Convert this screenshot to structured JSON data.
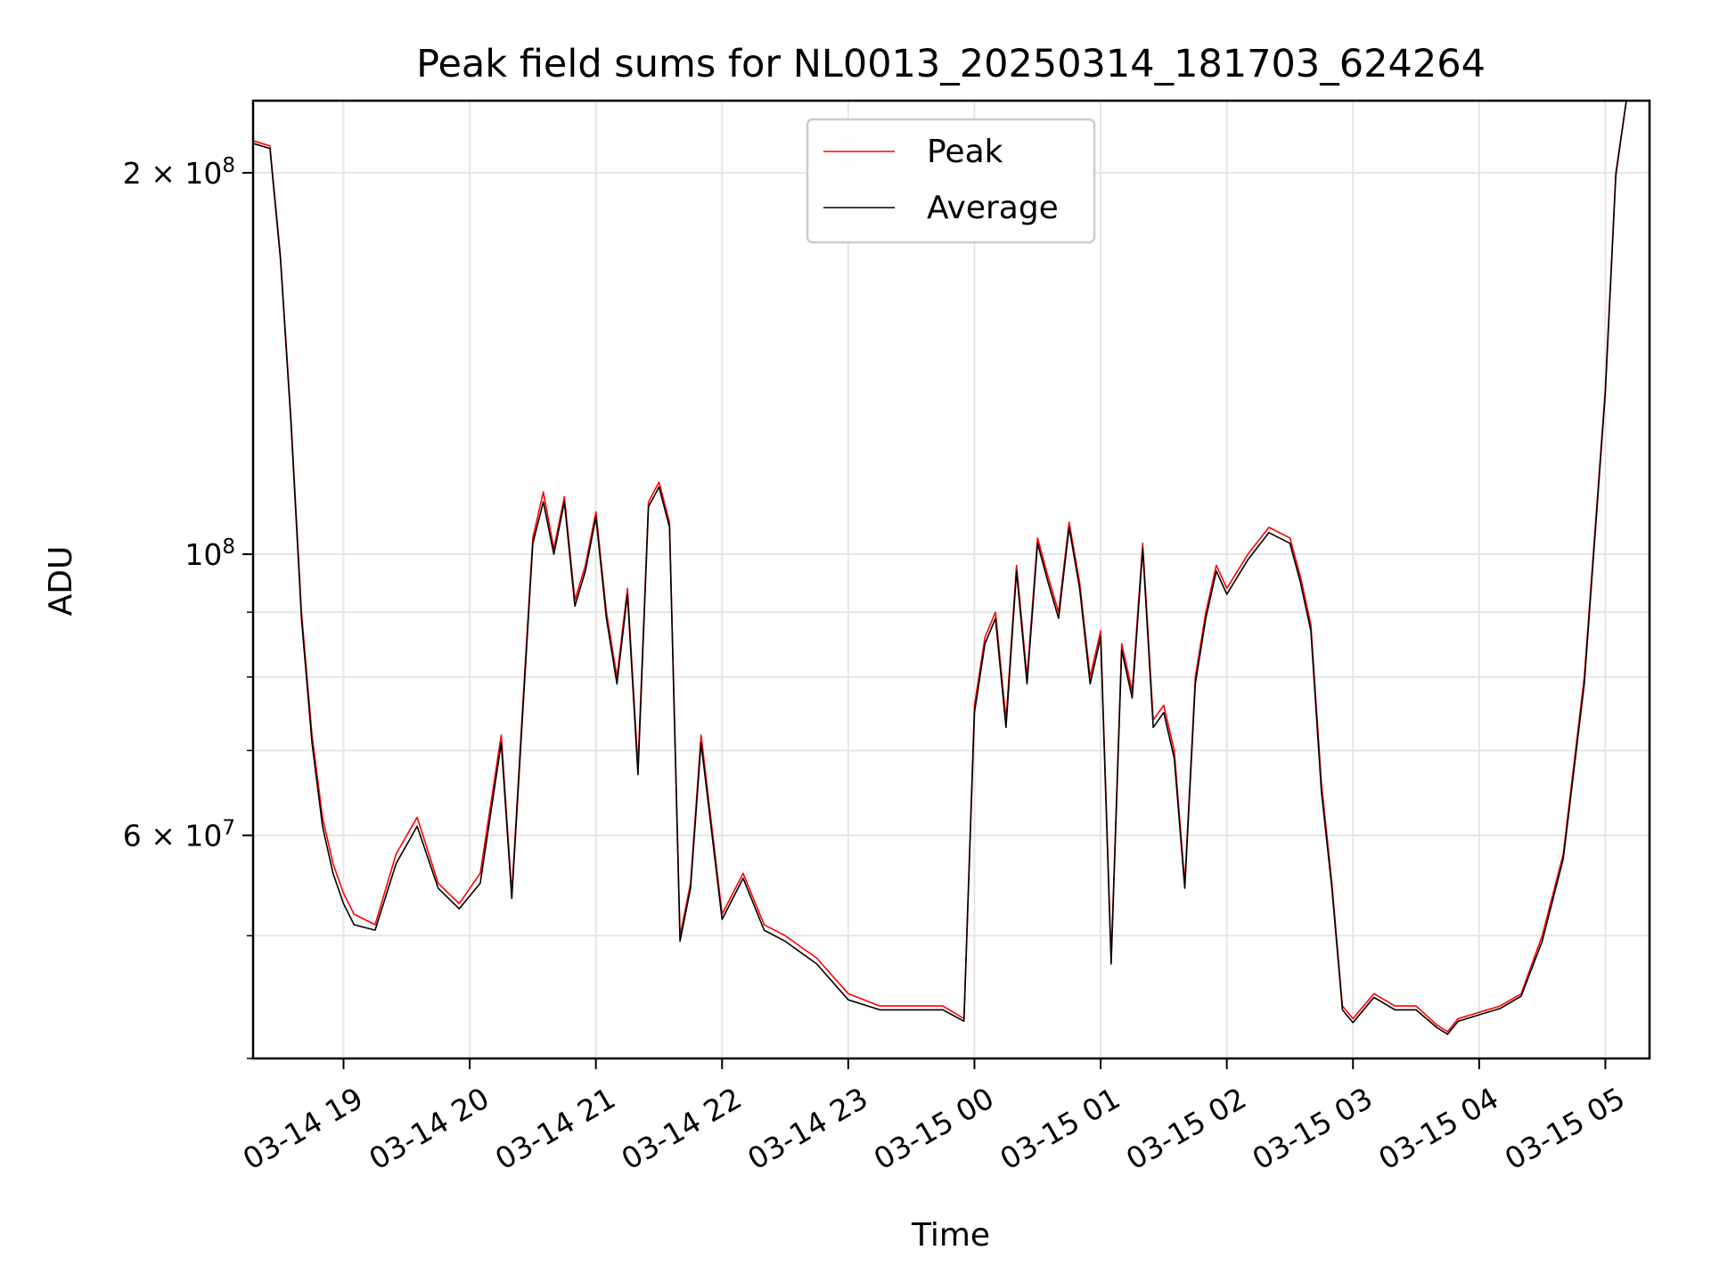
{
  "chart_data": {
    "type": "line",
    "title": "Peak field sums for NL0013_20250314_181703_624264",
    "xlabel": "Time",
    "ylabel": "ADU",
    "y_scale": "log",
    "ylim": [
      40000000,
      228000000
    ],
    "xlim": [
      "03-14 18:17",
      "03-15 05:21"
    ],
    "grid": true,
    "legend_position": "top-center",
    "x_ticks": [
      "03-14 19",
      "03-14 20",
      "03-14 21",
      "03-14 22",
      "03-14 23",
      "03-15 00",
      "03-15 01",
      "03-15 02",
      "03-15 03",
      "03-15 04",
      "03-15 05"
    ],
    "y_ticks": [
      {
        "value": 200000000,
        "label": "2 × 10^8"
      },
      {
        "value": 100000000,
        "label": "10^8"
      },
      {
        "value": 60000000,
        "label": "6 × 10^7"
      }
    ],
    "x": [
      "03-14 18:17",
      "03-14 18:25",
      "03-14 18:30",
      "03-14 18:35",
      "03-14 18:40",
      "03-14 18:45",
      "03-14 18:50",
      "03-14 18:55",
      "03-14 19:00",
      "03-14 19:05",
      "03-14 19:15",
      "03-14 19:25",
      "03-14 19:35",
      "03-14 19:45",
      "03-14 19:55",
      "03-14 20:05",
      "03-14 20:15",
      "03-14 20:20",
      "03-14 20:25",
      "03-14 20:30",
      "03-14 20:35",
      "03-14 20:40",
      "03-14 20:45",
      "03-14 20:50",
      "03-14 20:55",
      "03-14 21:00",
      "03-14 21:05",
      "03-14 21:10",
      "03-14 21:15",
      "03-14 21:20",
      "03-14 21:25",
      "03-14 21:30",
      "03-14 21:35",
      "03-14 21:40",
      "03-14 21:45",
      "03-14 21:50",
      "03-14 22:00",
      "03-14 22:10",
      "03-14 22:20",
      "03-14 22:30",
      "03-14 22:45",
      "03-14 23:00",
      "03-14 23:15",
      "03-14 23:30",
      "03-14 23:45",
      "03-14 23:55",
      "03-15 00:00",
      "03-15 00:05",
      "03-15 00:10",
      "03-15 00:15",
      "03-15 00:20",
      "03-15 00:25",
      "03-15 00:30",
      "03-15 00:35",
      "03-15 00:40",
      "03-15 00:45",
      "03-15 00:50",
      "03-15 00:55",
      "03-15 01:00",
      "03-15 01:05",
      "03-15 01:10",
      "03-15 01:15",
      "03-15 01:20",
      "03-15 01:25",
      "03-15 01:30",
      "03-15 01:35",
      "03-15 01:40",
      "03-15 01:45",
      "03-15 01:50",
      "03-15 01:55",
      "03-15 02:00",
      "03-15 02:10",
      "03-15 02:20",
      "03-15 02:30",
      "03-15 02:35",
      "03-15 02:40",
      "03-15 02:45",
      "03-15 02:50",
      "03-15 02:55",
      "03-15 03:00",
      "03-15 03:10",
      "03-15 03:20",
      "03-15 03:30",
      "03-15 03:40",
      "03-15 03:45",
      "03-15 03:50",
      "03-15 04:00",
      "03-15 04:10",
      "03-15 04:20",
      "03-15 04:30",
      "03-15 04:40",
      "03-15 04:50",
      "03-15 05:00",
      "03-15 05:05",
      "03-15 05:10"
    ],
    "series": [
      {
        "name": "Peak",
        "color": "#ff0000",
        "values": [
          212000000,
          210000000,
          172000000,
          128000000,
          90000000,
          72000000,
          62000000,
          57000000,
          54000000,
          52000000,
          51000000,
          58000000,
          62000000,
          55000000,
          53000000,
          56000000,
          72000000,
          54000000,
          75000000,
          103000000,
          112000000,
          101000000,
          111000000,
          92000000,
          98000000,
          108000000,
          90000000,
          80000000,
          94000000,
          68000000,
          110000000,
          114000000,
          106000000,
          50000000,
          55000000,
          72000000,
          52000000,
          56000000,
          51000000,
          50000000,
          48000000,
          45000000,
          44000000,
          44000000,
          44000000,
          43000000,
          76000000,
          86000000,
          90000000,
          74000000,
          98000000,
          80000000,
          103000000,
          96000000,
          90000000,
          106000000,
          95000000,
          80000000,
          87000000,
          48000000,
          85000000,
          78000000,
          102000000,
          74000000,
          76000000,
          70000000,
          55000000,
          80000000,
          90000000,
          98000000,
          94000000,
          100000000,
          105000000,
          103000000,
          96000000,
          88000000,
          66000000,
          55000000,
          44000000,
          43000000,
          45000000,
          44000000,
          44000000,
          42500000,
          42000000,
          43000000,
          43500000,
          44000000,
          45000000,
          50000000,
          58000000,
          80000000,
          135000000,
          200000000,
          228000000
        ]
      },
      {
        "name": "Average",
        "color": "#000000",
        "values": [
          211000000,
          209000000,
          171000000,
          127000000,
          89000000,
          71000000,
          61000000,
          56000000,
          53000000,
          51000000,
          50500000,
          57000000,
          61000000,
          54500000,
          52500000,
          55000000,
          71000000,
          53500000,
          74000000,
          102000000,
          110000000,
          100000000,
          110000000,
          91000000,
          97000000,
          107000000,
          89000000,
          79000000,
          93000000,
          67000000,
          109000000,
          113000000,
          105000000,
          49500000,
          54500000,
          71000000,
          51500000,
          55500000,
          50500000,
          49500000,
          47500000,
          44500000,
          43700000,
          43700000,
          43700000,
          42800000,
          75000000,
          85000000,
          89000000,
          73000000,
          97000000,
          79000000,
          102000000,
          95000000,
          89000000,
          105000000,
          94000000,
          79000000,
          86000000,
          47500000,
          84000000,
          77000000,
          101000000,
          73000000,
          75000000,
          69000000,
          54500000,
          79000000,
          89000000,
          97000000,
          93000000,
          99000000,
          104000000,
          102000000,
          95000000,
          87000000,
          65000000,
          54500000,
          43700000,
          42700000,
          44700000,
          43700000,
          43700000,
          42300000,
          41800000,
          42800000,
          43300000,
          43800000,
          44800000,
          49500000,
          57500000,
          79000000,
          134000000,
          199000000,
          228000000
        ]
      }
    ]
  }
}
